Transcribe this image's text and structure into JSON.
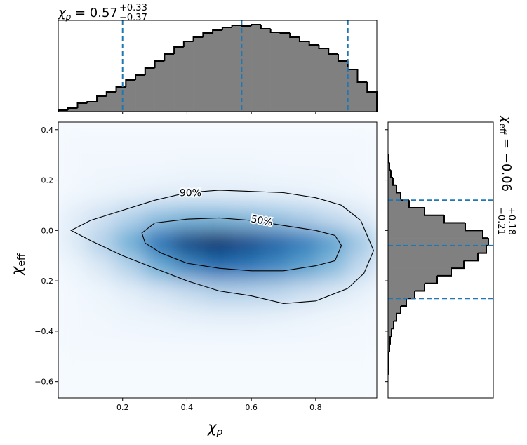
{
  "chart_data": {
    "type": "corner",
    "xlabel": {
      "symbol": "χ",
      "sub": "p"
    },
    "ylabel": {
      "symbol": "χ",
      "sub": "eff"
    },
    "xlim": [
      0.0,
      0.99
    ],
    "ylim": [
      -0.665,
      0.43
    ],
    "xticks": [
      0.2,
      0.4,
      0.6,
      0.8
    ],
    "yticks": [
      {
        "value": -0.6,
        "label": "−0.6"
      },
      {
        "value": -0.4,
        "label": "−0.4"
      },
      {
        "value": -0.2,
        "label": "−0.2"
      },
      {
        "value": 0,
        "label": "0.0"
      },
      0.2,
      0.4
    ],
    "density": {
      "cmap": [
        "#f7fbff",
        "#c6dbef",
        "#6baed6",
        "#2171b5",
        "#08306b"
      ],
      "x": [
        0.045,
        0.135,
        0.225,
        0.315,
        0.405,
        0.495,
        0.585,
        0.675,
        0.765,
        0.855,
        0.945
      ],
      "y": [
        0.35,
        0.25,
        0.15,
        0.05,
        -0.05,
        -0.15,
        -0.25,
        -0.35,
        -0.45,
        -0.55,
        -0.65
      ],
      "z": [
        [
          0.02,
          0.02,
          0.02,
          0.02,
          0.02,
          0.02,
          0.02,
          0.02,
          0.02,
          0.02,
          0.02
        ],
        [
          0.02,
          0.03,
          0.03,
          0.03,
          0.04,
          0.04,
          0.04,
          0.03,
          0.03,
          0.03,
          0.02
        ],
        [
          0.03,
          0.05,
          0.07,
          0.09,
          0.1,
          0.1,
          0.09,
          0.08,
          0.07,
          0.05,
          0.03
        ],
        [
          0.1,
          0.2,
          0.3,
          0.4,
          0.45,
          0.45,
          0.42,
          0.38,
          0.32,
          0.25,
          0.15
        ],
        [
          0.12,
          0.3,
          0.5,
          0.75,
          0.92,
          1.0,
          0.9,
          0.8,
          0.7,
          0.55,
          0.35
        ],
        [
          0.05,
          0.15,
          0.3,
          0.5,
          0.65,
          0.75,
          0.72,
          0.65,
          0.55,
          0.42,
          0.25
        ],
        [
          0.02,
          0.05,
          0.1,
          0.17,
          0.25,
          0.3,
          0.3,
          0.28,
          0.22,
          0.15,
          0.08
        ],
        [
          0.02,
          0.03,
          0.05,
          0.06,
          0.08,
          0.09,
          0.09,
          0.08,
          0.06,
          0.04,
          0.03
        ],
        [
          0.02,
          0.02,
          0.02,
          0.02,
          0.02,
          0.02,
          0.02,
          0.02,
          0.02,
          0.02,
          0.02
        ],
        [
          0.01,
          0.01,
          0.01,
          0.01,
          0.01,
          0.01,
          0.01,
          0.01,
          0.01,
          0.01,
          0.01
        ],
        [
          0.01,
          0.01,
          0.01,
          0.01,
          0.01,
          0.01,
          0.01,
          0.01,
          0.01,
          0.01,
          0.01
        ]
      ]
    },
    "contours": [
      {
        "label": "90%",
        "x": [
          0.04,
          0.1,
          0.2,
          0.3,
          0.4,
          0.5,
          0.6,
          0.7,
          0.8,
          0.88,
          0.94,
          0.98,
          0.95,
          0.9,
          0.8,
          0.7,
          0.6,
          0.5,
          0.4,
          0.3,
          0.2,
          0.1
        ],
        "y": [
          0.0,
          0.04,
          0.08,
          0.12,
          0.15,
          0.16,
          0.155,
          0.15,
          0.13,
          0.1,
          0.04,
          -0.08,
          -0.17,
          -0.23,
          -0.28,
          -0.29,
          -0.26,
          -0.24,
          -0.2,
          -0.15,
          -0.1,
          -0.04
        ]
      },
      {
        "label": "50%",
        "x": [
          0.26,
          0.3,
          0.4,
          0.5,
          0.6,
          0.7,
          0.8,
          0.86,
          0.88,
          0.86,
          0.8,
          0.7,
          0.6,
          0.5,
          0.4,
          0.32,
          0.27
        ],
        "y": [
          -0.01,
          0.03,
          0.045,
          0.05,
          0.04,
          0.02,
          0.0,
          -0.02,
          -0.06,
          -0.12,
          -0.14,
          -0.16,
          -0.16,
          -0.15,
          -0.13,
          -0.09,
          -0.05
        ]
      }
    ],
    "top_hist": {
      "color": "#808080",
      "line_color": "#1f77b4",
      "title": {
        "symbol": "χ",
        "sub": "p",
        "value": " = 0.57",
        "upper": "+0.33",
        "lower": "−0.37"
      },
      "bins": [
        0.0,
        0.03,
        0.06,
        0.09,
        0.12,
        0.15,
        0.18,
        0.21,
        0.24,
        0.27,
        0.3,
        0.33,
        0.36,
        0.39,
        0.42,
        0.45,
        0.48,
        0.51,
        0.54,
        0.57,
        0.6,
        0.63,
        0.66,
        0.69,
        0.72,
        0.75,
        0.78,
        0.81,
        0.84,
        0.87,
        0.9,
        0.93,
        0.96,
        0.99
      ],
      "counts": [
        2,
        5,
        12,
        14,
        22,
        28,
        35,
        45,
        52,
        62,
        72,
        82,
        92,
        100,
        106,
        112,
        116,
        120,
        123,
        122,
        124,
        118,
        113,
        112,
        106,
        100,
        95,
        90,
        82,
        72,
        60,
        42,
        28
      ],
      "ylim": [
        0,
        130
      ],
      "quantiles": [
        0.2,
        0.57,
        0.9
      ]
    },
    "right_hist": {
      "color": "#808080",
      "line_color": "#1f77b4",
      "title": {
        "symbol": "χ",
        "sub": "eff",
        "value": " = −0.06",
        "upper": "+0.18",
        "lower": "−0.21"
      },
      "bins": [
        -0.57,
        -0.54,
        -0.51,
        -0.48,
        -0.45,
        -0.42,
        -0.39,
        -0.36,
        -0.33,
        -0.3,
        -0.27,
        -0.24,
        -0.21,
        -0.18,
        -0.15,
        -0.12,
        -0.09,
        -0.06,
        -0.03,
        0.0,
        0.03,
        0.06,
        0.09,
        0.12,
        0.15,
        0.18,
        0.21,
        0.24,
        0.27,
        0.3
      ],
      "counts": [
        0.5,
        1,
        1,
        2,
        3,
        5,
        8,
        12,
        18,
        26,
        38,
        52,
        70,
        90,
        108,
        128,
        140,
        143,
        135,
        110,
        80,
        52,
        30,
        18,
        12,
        7,
        4,
        2,
        1
      ],
      "xlim": [
        0,
        150
      ],
      "quantiles": [
        -0.27,
        -0.06,
        0.12
      ]
    }
  }
}
